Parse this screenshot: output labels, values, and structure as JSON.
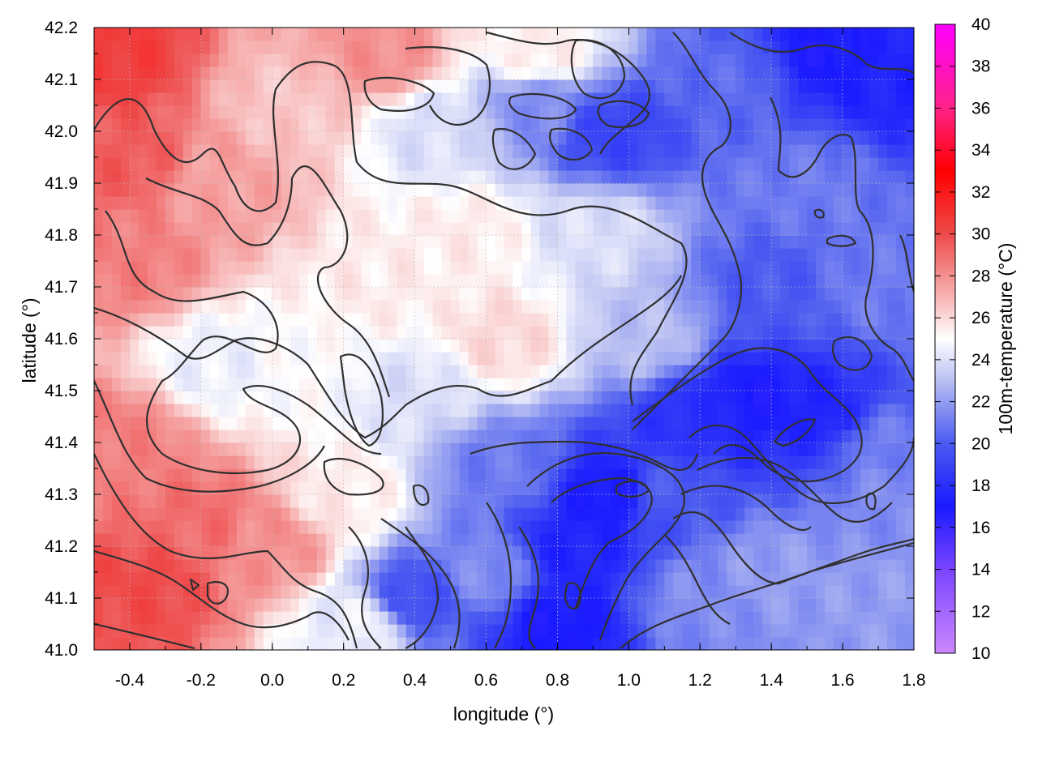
{
  "chart_data": {
    "type": "heatmap",
    "title": "",
    "xlabel": "longitude (°)",
    "ylabel": "latitude (°)",
    "colorbar_label": "100m-temperature (°C)",
    "xlim": [
      -0.5,
      1.8
    ],
    "ylim": [
      41.0,
      42.2
    ],
    "clim": [
      10,
      40
    ],
    "x_ticks": [
      "-0.4",
      "-0.2",
      "0.0",
      "0.2",
      "0.4",
      "0.6",
      "0.8",
      "1.0",
      "1.2",
      "1.4",
      "1.6",
      "1.8"
    ],
    "x_tick_values": [
      -0.4,
      -0.2,
      0.0,
      0.2,
      0.4,
      0.6,
      0.8,
      1.0,
      1.2,
      1.4,
      1.6,
      1.8
    ],
    "y_ticks": [
      "41.0",
      "41.1",
      "41.2",
      "41.3",
      "41.4",
      "41.5",
      "41.6",
      "41.7",
      "41.8",
      "41.9",
      "42.0",
      "42.1",
      "42.2"
    ],
    "y_tick_values": [
      41.0,
      41.1,
      41.2,
      41.3,
      41.4,
      41.5,
      41.6,
      41.7,
      41.8,
      41.9,
      42.0,
      42.1,
      42.2
    ],
    "colorbar_ticks": [
      "10",
      "12",
      "14",
      "16",
      "18",
      "20",
      "22",
      "24",
      "26",
      "28",
      "30",
      "32",
      "34",
      "36",
      "38",
      "40"
    ],
    "colorbar_tick_values": [
      10,
      12,
      14,
      16,
      18,
      20,
      22,
      24,
      26,
      28,
      30,
      32,
      34,
      36,
      38,
      40
    ],
    "colormap": [
      {
        "value": 10,
        "color": "#cc88ff"
      },
      {
        "value": 14,
        "color": "#7a44ff"
      },
      {
        "value": 17,
        "color": "#1a1aff"
      },
      {
        "value": 20,
        "color": "#4a5af0"
      },
      {
        "value": 23,
        "color": "#b8bff2"
      },
      {
        "value": 25,
        "color": "#ffffff"
      },
      {
        "value": 27,
        "color": "#f7b3b3"
      },
      {
        "value": 30,
        "color": "#ee4a4a"
      },
      {
        "value": 33,
        "color": "#ff0000"
      },
      {
        "value": 36,
        "color": "#ff2288"
      },
      {
        "value": 40,
        "color": "#ff00ff"
      }
    ],
    "grid": true,
    "grid_style": "dotted",
    "contours": true,
    "temperature_anchors": [
      {
        "lon": -0.45,
        "lat": 42.15,
        "t": 30.5
      },
      {
        "lon": -0.4,
        "lat": 41.95,
        "t": 29.5
      },
      {
        "lon": -0.4,
        "lat": 41.75,
        "t": 28.5
      },
      {
        "lon": -0.42,
        "lat": 41.4,
        "t": 28.5
      },
      {
        "lon": -0.35,
        "lat": 41.12,
        "t": 30.0
      },
      {
        "lon": -0.2,
        "lat": 41.25,
        "t": 29.0
      },
      {
        "lon": 0.0,
        "lat": 41.2,
        "t": 28.0
      },
      {
        "lon": -0.15,
        "lat": 41.9,
        "t": 27.5
      },
      {
        "lon": 0.05,
        "lat": 42.05,
        "t": 26.5
      },
      {
        "lon": 0.3,
        "lat": 42.15,
        "t": 28.0
      },
      {
        "lon": 0.1,
        "lat": 41.55,
        "t": 25.0
      },
      {
        "lon": -0.15,
        "lat": 41.55,
        "t": 24.5
      },
      {
        "lon": 0.2,
        "lat": 41.3,
        "t": 25.5
      },
      {
        "lon": 0.3,
        "lat": 41.7,
        "t": 25.5
      },
      {
        "lon": 0.55,
        "lat": 41.8,
        "t": 25.5
      },
      {
        "lon": 0.65,
        "lat": 41.6,
        "t": 26.0
      },
      {
        "lon": 0.4,
        "lat": 41.5,
        "t": 24.0
      },
      {
        "lon": 0.45,
        "lat": 42.0,
        "t": 24.0
      },
      {
        "lon": 0.75,
        "lat": 42.05,
        "t": 21.5
      },
      {
        "lon": 0.75,
        "lat": 42.15,
        "t": 25.5
      },
      {
        "lon": 0.95,
        "lat": 42.0,
        "t": 19.0
      },
      {
        "lon": 0.9,
        "lat": 41.8,
        "t": 24.0
      },
      {
        "lon": 1.05,
        "lat": 41.6,
        "t": 23.0
      },
      {
        "lon": 1.3,
        "lat": 42.1,
        "t": 20.5
      },
      {
        "lon": 1.55,
        "lat": 42.15,
        "t": 17.0
      },
      {
        "lon": 1.75,
        "lat": 42.1,
        "t": 17.5
      },
      {
        "lon": 1.5,
        "lat": 41.9,
        "t": 21.0
      },
      {
        "lon": 1.4,
        "lat": 41.7,
        "t": 20.0
      },
      {
        "lon": 1.35,
        "lat": 41.48,
        "t": 17.0
      },
      {
        "lon": 1.55,
        "lat": 41.45,
        "t": 17.5
      },
      {
        "lon": 1.2,
        "lat": 41.45,
        "t": 18.0
      },
      {
        "lon": 1.7,
        "lat": 41.7,
        "t": 21.0
      },
      {
        "lon": 1.7,
        "lat": 41.4,
        "t": 21.0
      },
      {
        "lon": 0.4,
        "lat": 41.1,
        "t": 19.5
      },
      {
        "lon": 0.65,
        "lat": 41.35,
        "t": 21.0
      },
      {
        "lon": 0.6,
        "lat": 41.15,
        "t": 21.5
      },
      {
        "lon": 0.85,
        "lat": 41.2,
        "t": 17.5
      },
      {
        "lon": 0.8,
        "lat": 41.05,
        "t": 17.0
      },
      {
        "lon": 0.95,
        "lat": 41.3,
        "t": 17.0
      },
      {
        "lon": 1.1,
        "lat": 41.3,
        "t": 20.0
      },
      {
        "lon": 1.2,
        "lat": 41.1,
        "t": 21.5
      },
      {
        "lon": 1.4,
        "lat": 41.15,
        "t": 22.0
      },
      {
        "lon": 1.7,
        "lat": 41.1,
        "t": 22.0
      },
      {
        "lon": 1.75,
        "lat": 41.3,
        "t": 21.5
      },
      {
        "lon": 0.25,
        "lat": 41.05,
        "t": 24.5
      }
    ]
  }
}
